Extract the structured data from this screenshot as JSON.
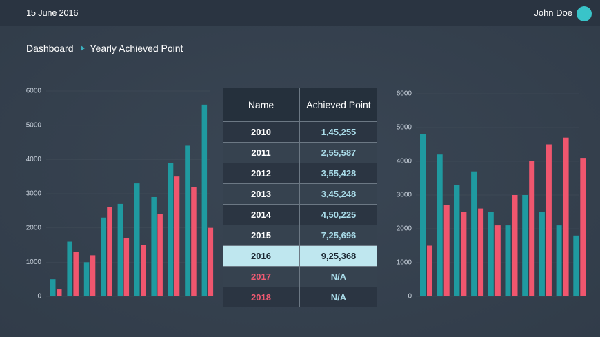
{
  "header": {
    "date": "15 June 2016",
    "user": "John Doe"
  },
  "breadcrumb": [
    "Dashboard",
    "Yearly Achieved Point"
  ],
  "table": {
    "columns": [
      "Name",
      "Achieved Point"
    ],
    "rows": [
      [
        "2010",
        "1,45,255"
      ],
      [
        "2011",
        "2,55,587"
      ],
      [
        "2012",
        "3,55,428"
      ],
      [
        "2013",
        "3,45,248"
      ],
      [
        "2014",
        "4,50,225"
      ],
      [
        "2015",
        "7,25,696"
      ],
      [
        "2016",
        "9,25,368"
      ],
      [
        "2017",
        "N/A"
      ],
      [
        "2018",
        "N/A"
      ]
    ]
  },
  "chart_data": [
    {
      "type": "bar",
      "categories": [
        null,
        null,
        null,
        null,
        null,
        null,
        null,
        null,
        null,
        null
      ],
      "series": [
        {
          "color": "#1f9aa0",
          "values": [
            500,
            1600,
            1000,
            2300,
            2700,
            3300,
            2900,
            3900,
            4400,
            5600
          ]
        },
        {
          "color": "#f0566e",
          "values": [
            200,
            1300,
            1200,
            2600,
            1700,
            1500,
            2400,
            3500,
            3200,
            2000
          ]
        }
      ],
      "ylim": [
        0,
        6000
      ],
      "yticks": [
        0,
        1000,
        2000,
        3000,
        4000,
        5000,
        6000
      ]
    },
    {
      "type": "bar",
      "categories": [
        null,
        null,
        null,
        null,
        null,
        null,
        null,
        null,
        null,
        null
      ],
      "series": [
        {
          "color": "#1f9aa0",
          "values": [
            4800,
            4200,
            3300,
            3700,
            2500,
            2100,
            3000,
            2500,
            2100,
            1800
          ]
        },
        {
          "color": "#f0566e",
          "values": [
            1500,
            2700,
            2500,
            2600,
            2100,
            3000,
            4000,
            4500,
            4700,
            4100
          ]
        }
      ],
      "ylim": [
        0,
        6000
      ],
      "yticks": [
        0,
        1000,
        2000,
        3000,
        4000,
        5000,
        6000
      ]
    }
  ]
}
